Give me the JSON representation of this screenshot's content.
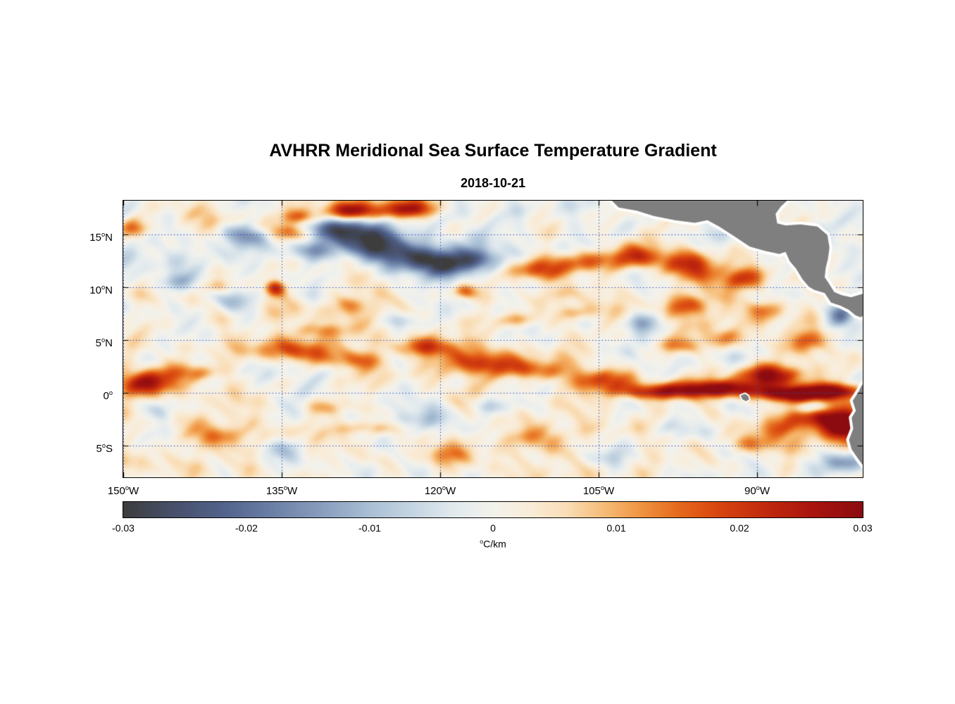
{
  "page": {
    "background": "#ffffff"
  },
  "chart_data": {
    "type": "heatmap",
    "title": "AVHRR Meridional Sea Surface Temperature Gradient",
    "subtitle": "2018-10-21",
    "extent": {
      "lon_min": -150,
      "lon_max": -80,
      "lat_min": -8,
      "lat_max": 18.2
    },
    "xticks": [
      {
        "lon": -150,
        "num": "150",
        "suf": "W"
      },
      {
        "lon": -135,
        "num": "135",
        "suf": "W"
      },
      {
        "lon": -120,
        "num": "120",
        "suf": "W"
      },
      {
        "lon": -105,
        "num": "105",
        "suf": "W"
      },
      {
        "lon": -90,
        "num": "90",
        "suf": "W"
      }
    ],
    "yticks": [
      {
        "lat": 15,
        "num": "15",
        "suf": "N"
      },
      {
        "lat": 10,
        "num": "10",
        "suf": "N"
      },
      {
        "lat": 5,
        "num": "5",
        "suf": "N"
      },
      {
        "lat": 0,
        "num": "0",
        "suf": ""
      },
      {
        "lat": -5,
        "num": "5",
        "suf": "S"
      }
    ],
    "colorbar": {
      "min": -0.03,
      "max": 0.03,
      "ticks": [
        {
          "v": -0.03,
          "label": "-0.03"
        },
        {
          "v": -0.02,
          "label": "-0.02"
        },
        {
          "v": -0.01,
          "label": "-0.01"
        },
        {
          "v": 0,
          "label": "0"
        },
        {
          "v": 0.01,
          "label": "0.01"
        },
        {
          "v": 0.02,
          "label": "0.02"
        },
        {
          "v": 0.03,
          "label": "0.03"
        }
      ],
      "units_sup": "o",
      "units_text": "C/km"
    },
    "colormap": [
      [
        -0.03,
        "#3d3d3d"
      ],
      [
        -0.026,
        "#47506a"
      ],
      [
        -0.022,
        "#52628b"
      ],
      [
        -0.018,
        "#6a7fa5"
      ],
      [
        -0.014,
        "#889dbd"
      ],
      [
        -0.01,
        "#a9bfd4"
      ],
      [
        -0.006,
        "#c9d8e4"
      ],
      [
        -0.003,
        "#e2eaee"
      ],
      [
        0.0,
        "#f3f2ec"
      ],
      [
        0.003,
        "#f9ecd8"
      ],
      [
        0.006,
        "#f9ddb6"
      ],
      [
        0.009,
        "#f6bc77"
      ],
      [
        0.012,
        "#ef9441"
      ],
      [
        0.015,
        "#e56a1e"
      ],
      [
        0.018,
        "#d94810"
      ],
      [
        0.022,
        "#c22a0d"
      ],
      [
        0.026,
        "#a8150e"
      ],
      [
        0.03,
        "#8c0b10"
      ]
    ],
    "grid": {
      "color": "#2b4db8",
      "dash": [
        1.5,
        3
      ]
    },
    "land": {
      "color": "#7f7f7f",
      "outline": "#ffffff",
      "polygons": {
        "central_america": [
          [
            -103.8,
            18.25
          ],
          [
            -103.1,
            17.55
          ],
          [
            -101.4,
            17.25
          ],
          [
            -99.8,
            16.75
          ],
          [
            -97.8,
            16.35
          ],
          [
            -95.9,
            16.1
          ],
          [
            -94.7,
            16.35
          ],
          [
            -93.6,
            15.75
          ],
          [
            -92.2,
            14.85
          ],
          [
            -90.7,
            13.85
          ],
          [
            -89.3,
            13.45
          ],
          [
            -87.9,
            13.15
          ],
          [
            -87.3,
            13.35
          ],
          [
            -86.9,
            12.45
          ],
          [
            -86.3,
            11.75
          ],
          [
            -85.7,
            10.75
          ],
          [
            -85.1,
            10.05
          ],
          [
            -84.6,
            9.75
          ],
          [
            -83.6,
            9.45
          ],
          [
            -83.0,
            8.55
          ],
          [
            -82.1,
            8.25
          ],
          [
            -81.3,
            7.85
          ],
          [
            -80.7,
            7.35
          ],
          [
            -80.2,
            7.15
          ],
          [
            -79.6,
            7.55
          ],
          [
            -78.8,
            7.0
          ],
          [
            -78.0,
            7.3
          ],
          [
            -78.0,
            9.8
          ],
          [
            -79.2,
            9.55
          ],
          [
            -80.1,
            9.35
          ],
          [
            -81.1,
            9.05
          ],
          [
            -82.0,
            9.25
          ],
          [
            -82.7,
            9.55
          ],
          [
            -83.2,
            10.35
          ],
          [
            -83.6,
            10.95
          ],
          [
            -83.5,
            11.85
          ],
          [
            -83.3,
            12.65
          ],
          [
            -83.15,
            13.75
          ],
          [
            -83.35,
            14.95
          ],
          [
            -84.3,
            15.75
          ],
          [
            -85.9,
            15.95
          ],
          [
            -87.3,
            15.85
          ],
          [
            -88.1,
            16.05
          ],
          [
            -88.25,
            16.95
          ],
          [
            -87.75,
            17.65
          ],
          [
            -87.1,
            18.25
          ]
        ],
        "south_america": [
          [
            -78.5,
            1.6
          ],
          [
            -79.6,
            1.1
          ],
          [
            -80.1,
            0.7
          ],
          [
            -80.4,
            0.1
          ],
          [
            -80.95,
            -0.75
          ],
          [
            -80.65,
            -1.7
          ],
          [
            -81.05,
            -2.35
          ],
          [
            -80.9,
            -3.4
          ],
          [
            -81.3,
            -4.45
          ],
          [
            -81.05,
            -5.35
          ],
          [
            -80.4,
            -6.3
          ],
          [
            -79.8,
            -7.1
          ],
          [
            -79.3,
            -8.0
          ],
          [
            -79.1,
            -8.6
          ],
          [
            -77.5,
            -8.6
          ],
          [
            -77.5,
            1.6
          ]
        ],
        "galapagos": [
          [
            -91.55,
            -0.25
          ],
          [
            -91.15,
            -0.1
          ],
          [
            -90.85,
            -0.3
          ],
          [
            -90.75,
            -0.62
          ],
          [
            -91.05,
            -0.8
          ],
          [
            -91.4,
            -0.62
          ]
        ]
      }
    },
    "features": [
      [
        -147.5,
        0.9,
        2.2,
        0.8,
        0.024
      ],
      [
        -143,
        1.9,
        1.8,
        0.6,
        0.014
      ],
      [
        -149,
        15.5,
        1.0,
        0.7,
        0.018
      ],
      [
        -143.5,
        17,
        2,
        0.8,
        0.008
      ],
      [
        -139.5,
        15.3,
        1.2,
        0.6,
        -0.009
      ],
      [
        -137.5,
        14.8,
        1.0,
        0.6,
        -0.013
      ],
      [
        -134.5,
        15.2,
        1.3,
        0.6,
        0.019
      ],
      [
        -128,
        17.2,
        2.3,
        0.7,
        0.027
      ],
      [
        -122.5,
        17.4,
        1.5,
        0.6,
        0.022
      ],
      [
        -133,
        16.6,
        1.1,
        0.5,
        0.016
      ],
      [
        -129.8,
        15.6,
        2.2,
        0.9,
        -0.027
      ],
      [
        -126.3,
        14.1,
        2.4,
        1.0,
        -0.027
      ],
      [
        -122.8,
        12.9,
        2.0,
        0.9,
        -0.022
      ],
      [
        -119.6,
        12.1,
        1.9,
        1.0,
        -0.024
      ],
      [
        -116.2,
        12.7,
        1.4,
        0.8,
        -0.017
      ],
      [
        -132.6,
        13.4,
        1.4,
        0.7,
        -0.014
      ],
      [
        -135.6,
        9.9,
        0.7,
        0.55,
        0.021
      ],
      [
        -145,
        10.5,
        1.4,
        0.6,
        -0.008
      ],
      [
        -141.5,
        10.1,
        1.1,
        0.5,
        0.011
      ],
      [
        -139,
        8.7,
        1.3,
        0.7,
        -0.012
      ],
      [
        -123,
        6.7,
        1.5,
        0.6,
        -0.01
      ],
      [
        -111,
        11.6,
        2.0,
        0.8,
        0.02
      ],
      [
        -106.5,
        12.4,
        1.9,
        0.8,
        0.018
      ],
      [
        -101.2,
        12.9,
        2.0,
        0.8,
        0.02
      ],
      [
        -96.2,
        12.1,
        1.9,
        0.9,
        0.021
      ],
      [
        -91.6,
        10.7,
        1.7,
        0.8,
        0.019
      ],
      [
        -96.5,
        8.3,
        1.4,
        0.7,
        0.016
      ],
      [
        -100.5,
        6.5,
        1.3,
        0.7,
        -0.012
      ],
      [
        -133.6,
        4.1,
        2.4,
        0.8,
        0.021
      ],
      [
        -128.2,
        3.1,
        1.9,
        0.7,
        0.016
      ],
      [
        -121.7,
        4.3,
        2.0,
        0.7,
        0.021
      ],
      [
        -116,
        2.9,
        2.3,
        0.8,
        0.019
      ],
      [
        -110.8,
        2.1,
        2.0,
        0.7,
        0.017
      ],
      [
        -104.6,
        1.3,
        2.2,
        0.8,
        0.02
      ],
      [
        -99.8,
        0.1,
        2.8,
        0.55,
        0.024
      ],
      [
        -93.5,
        0.4,
        3.0,
        0.55,
        0.027
      ],
      [
        -88.7,
        1.6,
        2.0,
        0.7,
        0.028
      ],
      [
        -86.5,
        -0.1,
        2.6,
        0.5,
        0.028
      ],
      [
        -82.5,
        0.2,
        1.8,
        0.5,
        0.026
      ],
      [
        -84.3,
        -2.3,
        2.0,
        1.0,
        0.027
      ],
      [
        -81.6,
        -3.3,
        1.4,
        1.1,
        0.029
      ],
      [
        -84.9,
        -1.4,
        1.1,
        0.45,
        -0.02
      ],
      [
        -88.8,
        -3.3,
        1.4,
        0.7,
        0.013
      ],
      [
        -81.8,
        -6.6,
        1.4,
        0.8,
        -0.018
      ],
      [
        -82.2,
        7.4,
        0.9,
        0.8,
        -0.019
      ],
      [
        -120.2,
        -2.3,
        1.5,
        0.8,
        -0.012
      ],
      [
        -124.2,
        -2.9,
        1.0,
        0.6,
        -0.009
      ],
      [
        -126.2,
        -3.3,
        2.0,
        0.5,
        0.011
      ],
      [
        -146.5,
        -1.8,
        1.5,
        0.8,
        -0.009
      ],
      [
        -104.6,
        -6.1,
        1.5,
        0.6,
        -0.009
      ],
      [
        -114.3,
        -1.2,
        1.6,
        0.6,
        -0.008
      ],
      [
        -109,
        9.3,
        1.1,
        0.6,
        0.012
      ],
      [
        -117.8,
        9.6,
        0.9,
        0.5,
        0.014
      ],
      [
        -112.8,
        6.9,
        1.5,
        0.5,
        0.01
      ],
      [
        -107,
        7.6,
        1.3,
        0.5,
        0.009
      ],
      [
        -127.9,
        8.4,
        1.3,
        0.6,
        0.009
      ],
      [
        -131.5,
        5.9,
        1.4,
        0.5,
        0.01
      ],
      [
        -97.5,
        4.4,
        1.5,
        0.6,
        0.012
      ],
      [
        -92.5,
        5.2,
        1.3,
        0.6,
        0.011
      ],
      [
        -89,
        7.9,
        1.2,
        0.6,
        0.013
      ],
      [
        -85.5,
        4.9,
        1.3,
        0.7,
        0.012
      ],
      [
        -90.5,
        -4.9,
        1.6,
        0.6,
        0.009
      ],
      [
        -98,
        -3.4,
        1.5,
        0.7,
        -0.008
      ],
      [
        -135,
        -5.4,
        1.6,
        0.7,
        -0.007
      ],
      [
        -130.5,
        -1.4,
        1.5,
        0.6,
        0.009
      ],
      [
        -141,
        -3.9,
        1.6,
        0.7,
        0.008
      ],
      [
        -119.5,
        -5.9,
        1.8,
        0.6,
        0.008
      ],
      [
        -112,
        -4.4,
        1.6,
        0.7,
        0.007
      ]
    ],
    "noise": {
      "amp": 0.0065,
      "scale": 1.7
    }
  }
}
